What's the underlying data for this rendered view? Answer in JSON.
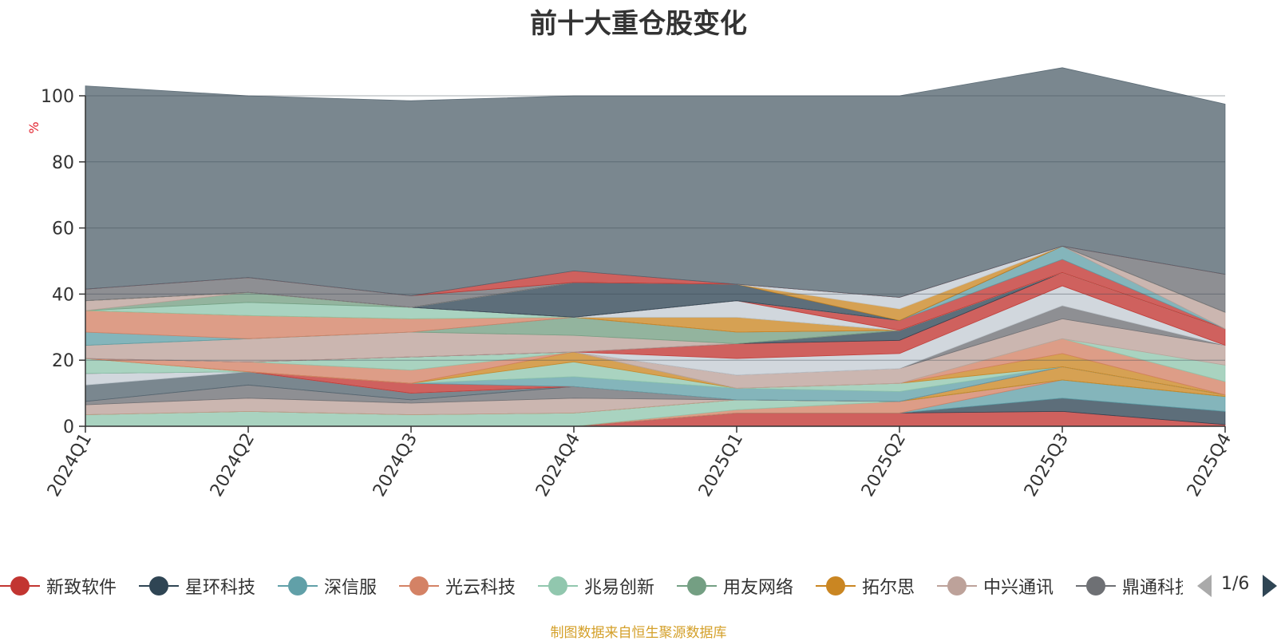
{
  "chart_data": {
    "type": "area",
    "stacked": true,
    "title": "前十大重仓股变化",
    "ylabel": "%",
    "ylim": [
      0,
      100
    ],
    "yticks": [
      0,
      20,
      40,
      60,
      80,
      100
    ],
    "x": [
      "2024Q1",
      "2024Q2",
      "2024Q3",
      "2024Q4",
      "2025Q1",
      "2025Q2",
      "2025Q3",
      "2025Q4"
    ],
    "series": [
      {
        "color": "#c23531",
        "values": [
          0,
          0,
          0,
          0,
          4,
          4,
          4.5,
          0.5
        ]
      },
      {
        "color": "#2f4554",
        "values": [
          0,
          0,
          0,
          0,
          0,
          0,
          4,
          4
        ]
      },
      {
        "color": "#61a0a8",
        "values": [
          0,
          0,
          0,
          0,
          0,
          0,
          5.5,
          4.5
        ]
      },
      {
        "color": "#d48265",
        "values": [
          0,
          0,
          0,
          0,
          1,
          3.5,
          0,
          0
        ]
      },
      {
        "color": "#91c7ae",
        "values": [
          3.5,
          4.5,
          3.5,
          4,
          3,
          0,
          0,
          0
        ]
      },
      {
        "color": "#749f83",
        "values": [
          0,
          0,
          0,
          0,
          0,
          0,
          0,
          0
        ]
      },
      {
        "color": "#ca8622",
        "values": [
          0,
          0,
          0,
          0,
          0,
          0,
          4,
          0.5
        ]
      },
      {
        "color": "#bda29a",
        "values": [
          3,
          4,
          3.5,
          4.5,
          0,
          0,
          0,
          0
        ]
      },
      {
        "color": "#6e7074",
        "values": [
          1,
          4,
          1,
          3.5,
          0,
          0,
          0,
          0
        ]
      },
      {
        "color": "#546570",
        "values": [
          5,
          4,
          2,
          0,
          0,
          0,
          0,
          0
        ]
      },
      {
        "color": "#c4ccd3",
        "values": [
          3.5,
          0,
          0,
          0,
          0,
          0,
          0,
          0
        ]
      },
      {
        "color": "#c23531",
        "values": [
          0,
          0,
          3,
          0,
          0,
          0,
          0,
          0
        ]
      },
      {
        "color": "#61a0a8",
        "values": [
          0,
          0,
          0,
          3,
          3.5,
          3,
          0,
          0
        ]
      },
      {
        "color": "#91c7ae",
        "values": [
          4.5,
          0,
          0,
          4.5,
          0,
          2.5,
          0,
          0
        ]
      },
      {
        "color": "#ca8622",
        "values": [
          0,
          0,
          0,
          3,
          0,
          0,
          4,
          0
        ]
      },
      {
        "color": "#d48265",
        "values": [
          0,
          3,
          4,
          0,
          0,
          0,
          4.5,
          4
        ]
      },
      {
        "color": "#91c7ae",
        "values": [
          0,
          0,
          4,
          0,
          0,
          0,
          0,
          5
        ]
      },
      {
        "color": "#bda29a",
        "values": [
          0,
          0,
          0,
          0,
          4,
          4.5,
          6,
          6
        ]
      },
      {
        "color": "#6e7074",
        "values": [
          0,
          0,
          0,
          0,
          0,
          0,
          4,
          0
        ]
      },
      {
        "color": "#c4ccd3",
        "values": [
          0,
          0,
          0,
          0,
          5,
          4.5,
          6,
          0
        ]
      },
      {
        "color": "#c23531",
        "values": [
          0,
          0,
          0,
          0,
          4.5,
          4,
          4,
          5
        ]
      },
      {
        "color": "#2f4554",
        "values": [
          0,
          0,
          0,
          0,
          0,
          3,
          0,
          0
        ]
      },
      {
        "color": "#bda29a",
        "values": [
          4,
          7,
          7.5,
          5,
          0,
          0,
          0,
          0
        ]
      },
      {
        "color": "#749f83",
        "values": [
          0,
          0,
          0,
          5.5,
          3.5,
          0,
          0,
          0
        ]
      },
      {
        "color": "#61a0a8",
        "values": [
          4,
          0,
          0,
          0,
          0,
          0,
          0,
          0
        ]
      },
      {
        "color": "#d48265",
        "values": [
          6.5,
          7,
          4,
          0,
          0,
          0,
          0,
          0
        ]
      },
      {
        "color": "#ca8622",
        "values": [
          0,
          0,
          0,
          0,
          4.5,
          0,
          0,
          0
        ]
      },
      {
        "color": "#91c7ae",
        "values": [
          0,
          4,
          3.5,
          0,
          0,
          0,
          0,
          0
        ]
      },
      {
        "color": "#749f83",
        "values": [
          0,
          3,
          0,
          0,
          0,
          0,
          0,
          0
        ]
      },
      {
        "color": "#bda29a",
        "values": [
          3,
          0,
          0,
          0,
          0,
          0,
          0,
          0
        ]
      },
      {
        "color": "#c4ccd3",
        "values": [
          0,
          0,
          0,
          0,
          5,
          0,
          0,
          0
        ]
      },
      {
        "color": "#c23531",
        "values": [
          0,
          0,
          0,
          0,
          0,
          3,
          4,
          0
        ]
      },
      {
        "color": "#61a0a8",
        "values": [
          0,
          0,
          0,
          0,
          0,
          0,
          4,
          0
        ]
      },
      {
        "color": "#bda29a",
        "values": [
          0,
          0,
          0,
          0,
          0,
          0,
          0,
          5
        ]
      },
      {
        "color": "#2f4554",
        "values": [
          0,
          0,
          0,
          10.5,
          5,
          0,
          0,
          0
        ]
      },
      {
        "color": "#ca8622",
        "values": [
          0,
          0,
          0,
          0,
          0,
          3.5,
          0,
          0
        ]
      },
      {
        "color": "#c4ccd3",
        "values": [
          0,
          0,
          0,
          0,
          0,
          3.5,
          0,
          0
        ]
      },
      {
        "color": "#6e7074",
        "values": [
          3.5,
          4.5,
          3.5,
          0,
          0,
          0,
          0,
          11.5
        ]
      },
      {
        "color": "#c23531",
        "values": [
          0,
          0,
          0,
          3.5,
          0,
          0,
          0,
          0
        ]
      },
      {
        "color": "#546570",
        "values": [
          61.5,
          55,
          59,
          53,
          57,
          61,
          54,
          51.5
        ]
      }
    ]
  },
  "legend": {
    "items": [
      {
        "name": "新致软件",
        "color": "#c23531"
      },
      {
        "name": "星环科技",
        "color": "#2f4554"
      },
      {
        "name": "深信服",
        "color": "#61a0a8"
      },
      {
        "name": "光云科技",
        "color": "#d48265"
      },
      {
        "name": "兆易创新",
        "color": "#91c7ae"
      },
      {
        "name": "用友网络",
        "color": "#749f83"
      },
      {
        "name": "拓尔思",
        "color": "#ca8622"
      },
      {
        "name": "中兴通讯",
        "color": "#bda29a"
      },
      {
        "name": "鼎通科技",
        "color": "#6e7074"
      }
    ],
    "page": "1/6"
  },
  "source": "制图数据来自恒生聚源数据库"
}
